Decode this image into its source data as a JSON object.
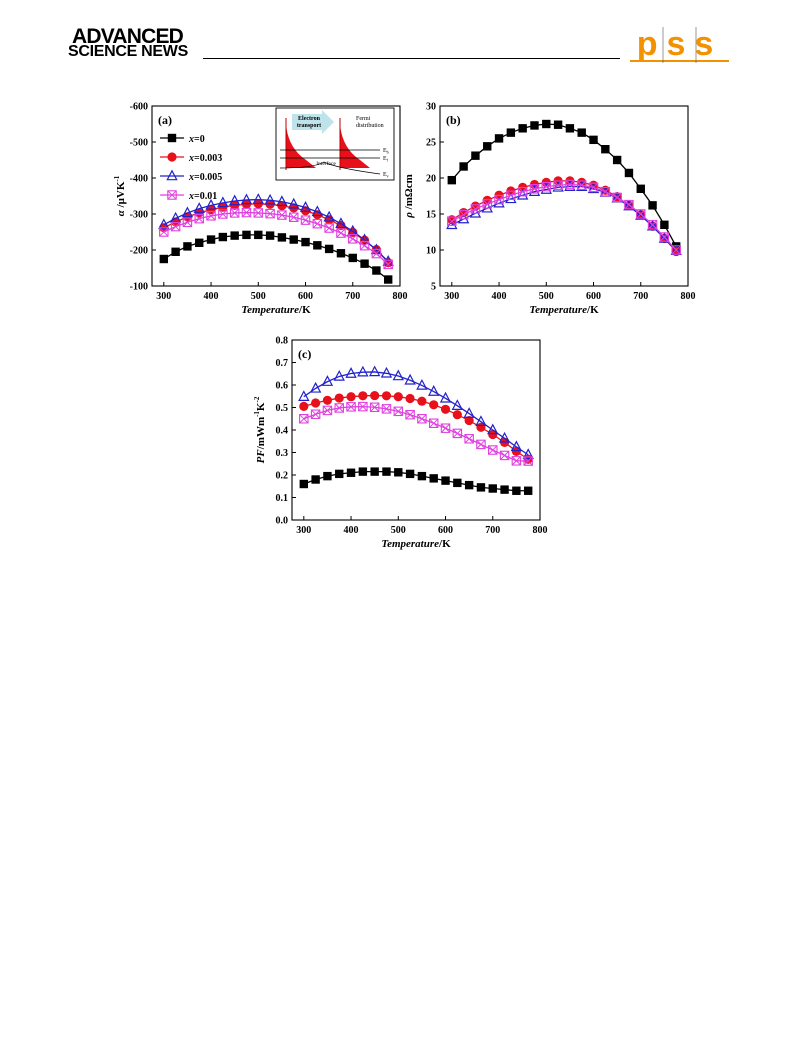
{
  "header": {
    "brand_line1": "ADVANCED",
    "brand_line2": "SCIENCE NEWS",
    "journal_logo": "pss",
    "logo_color": "#f39200"
  },
  "series_style": [
    {
      "color": "#000000",
      "marker": "square"
    },
    {
      "color": "#e8101a",
      "marker": "circle"
    },
    {
      "color": "#2222cc",
      "marker": "triangle"
    },
    {
      "color": "#e040e0",
      "marker": "square-x"
    }
  ],
  "chart_data": [
    {
      "type": "line",
      "panel_label": "(a)",
      "xlabel_italic": "Temperature",
      "xlabel_unit": "/K",
      "ylabel_italic": "α",
      "ylabel_unit": " /μVK",
      "ylabel_exp": "-1",
      "xlim": [
        275,
        800
      ],
      "ylim": [
        -600,
        -100
      ],
      "y_inverted": true,
      "xticks": [
        300,
        400,
        500,
        600,
        700,
        800
      ],
      "yticks": [
        -600,
        -500,
        -400,
        -300,
        -200,
        -100
      ],
      "legend": "top-left",
      "x": [
        300,
        325,
        350,
        375,
        400,
        425,
        450,
        475,
        500,
        525,
        550,
        575,
        600,
        625,
        650,
        675,
        700,
        725,
        750,
        775
      ],
      "series": [
        {
          "name": "x=0",
          "legend_var": "x",
          "legend_val": "=0",
          "values": [
            -175,
            -195,
            -210,
            -220,
            -229,
            -236,
            -240,
            -242,
            -242,
            -240,
            -235,
            -229,
            -222,
            -213,
            -203,
            -191,
            -178,
            -162,
            -143,
            -118
          ]
        },
        {
          "name": "x=0.003",
          "legend_var": "x",
          "legend_val": "=0.003",
          "values": [
            -262,
            -278,
            -292,
            -303,
            -312,
            -319,
            -324,
            -327,
            -328,
            -327,
            -323,
            -317,
            -309,
            -298,
            -284,
            -268,
            -249,
            -227,
            -201,
            -165
          ]
        },
        {
          "name": "x=0.005",
          "legend_var": "x",
          "legend_val": "=0.005",
          "values": [
            -270,
            -288,
            -303,
            -315,
            -324,
            -331,
            -336,
            -339,
            -340,
            -338,
            -334,
            -327,
            -318,
            -306,
            -291,
            -273,
            -252,
            -228,
            -200,
            -168
          ]
        },
        {
          "name": "x=0.01",
          "legend_var": "x",
          "legend_val": "=0.01",
          "values": [
            -250,
            -265,
            -277,
            -287,
            -295,
            -300,
            -303,
            -304,
            -303,
            -301,
            -297,
            -291,
            -283,
            -273,
            -261,
            -247,
            -231,
            -212,
            -190,
            -160
          ]
        }
      ],
      "inset": {
        "arrow_text_1": "Electron",
        "arrow_text_2": "transport",
        "fermi_text_1": "Fermi",
        "fermi_text_2": "distribution",
        "interface_label": "Interface",
        "level_1": "E",
        "level_1_sub": "b",
        "level_2": "E",
        "level_2_sub": "f",
        "level_3": "E",
        "level_3_sub": "v"
      }
    },
    {
      "type": "line",
      "panel_label": "(b)",
      "xlabel_italic": "Temperature",
      "xlabel_unit": "/K",
      "ylabel_italic": "ρ",
      "ylabel_unit": " /mΩcm",
      "xlim": [
        275,
        800
      ],
      "ylim": [
        5,
        30
      ],
      "xticks": [
        300,
        400,
        500,
        600,
        700,
        800
      ],
      "yticks": [
        5,
        10,
        15,
        20,
        25,
        30
      ],
      "x": [
        300,
        325,
        350,
        375,
        400,
        425,
        450,
        475,
        500,
        525,
        550,
        575,
        600,
        625,
        650,
        675,
        700,
        725,
        750,
        775
      ],
      "series": [
        {
          "name": "x=0",
          "values": [
            19.7,
            21.6,
            23.1,
            24.4,
            25.5,
            26.3,
            26.9,
            27.3,
            27.5,
            27.4,
            26.9,
            26.3,
            25.3,
            24.0,
            22.5,
            20.7,
            18.5,
            16.2,
            13.5,
            10.5
          ]
        },
        {
          "name": "x=0.003",
          "values": [
            14.2,
            15.2,
            16.1,
            16.9,
            17.6,
            18.2,
            18.7,
            19.1,
            19.4,
            19.6,
            19.6,
            19.4,
            19.0,
            18.3,
            17.4,
            16.2,
            14.9,
            13.3,
            11.6,
            9.8
          ]
        },
        {
          "name": "x=0.005",
          "values": [
            13.5,
            14.3,
            15.1,
            15.8,
            16.5,
            17.1,
            17.6,
            18.1,
            18.4,
            18.7,
            18.8,
            18.8,
            18.5,
            18.0,
            17.2,
            16.1,
            14.8,
            13.3,
            11.6,
            9.9
          ]
        },
        {
          "name": "x=0.01",
          "values": [
            14.0,
            14.9,
            15.7,
            16.4,
            17.0,
            17.6,
            18.1,
            18.5,
            18.8,
            19.0,
            19.1,
            19.0,
            18.7,
            18.1,
            17.3,
            16.3,
            15.0,
            13.5,
            11.8,
            10.0
          ]
        }
      ]
    },
    {
      "type": "line",
      "panel_label": "(c)",
      "xlabel_italic": "Temperature",
      "xlabel_unit": "/K",
      "ylabel_italic": "PF",
      "ylabel_unit": "/mWm",
      "ylabel_exp1": "-1",
      "ylabel_mid": "K",
      "ylabel_exp2": "-2",
      "xlim": [
        275,
        800
      ],
      "ylim": [
        0.0,
        0.8
      ],
      "xticks": [
        300,
        400,
        500,
        600,
        700,
        800
      ],
      "yticks": [
        0.0,
        0.1,
        0.2,
        0.3,
        0.4,
        0.5,
        0.6,
        0.7,
        0.8
      ],
      "x": [
        300,
        325,
        350,
        375,
        400,
        425,
        450,
        475,
        500,
        525,
        550,
        575,
        600,
        625,
        650,
        675,
        700,
        725,
        750,
        775
      ],
      "series": [
        {
          "name": "x=0",
          "values": [
            0.16,
            0.18,
            0.195,
            0.205,
            0.21,
            0.215,
            0.215,
            0.215,
            0.212,
            0.205,
            0.195,
            0.185,
            0.175,
            0.165,
            0.155,
            0.145,
            0.14,
            0.135,
            0.13,
            0.13
          ]
        },
        {
          "name": "x=0.003",
          "values": [
            0.505,
            0.52,
            0.532,
            0.542,
            0.548,
            0.552,
            0.553,
            0.552,
            0.548,
            0.54,
            0.528,
            0.512,
            0.492,
            0.468,
            0.442,
            0.412,
            0.38,
            0.345,
            0.305,
            0.27
          ]
        },
        {
          "name": "x=0.005",
          "values": [
            0.548,
            0.585,
            0.615,
            0.638,
            0.651,
            0.657,
            0.658,
            0.652,
            0.64,
            0.621,
            0.598,
            0.571,
            0.541,
            0.508,
            0.473,
            0.437,
            0.4,
            0.363,
            0.325,
            0.29
          ]
        },
        {
          "name": "x=0.01",
          "values": [
            0.45,
            0.47,
            0.487,
            0.498,
            0.503,
            0.504,
            0.501,
            0.494,
            0.483,
            0.468,
            0.45,
            0.43,
            0.408,
            0.385,
            0.361,
            0.336,
            0.311,
            0.287,
            0.263,
            0.262
          ]
        }
      ]
    }
  ]
}
